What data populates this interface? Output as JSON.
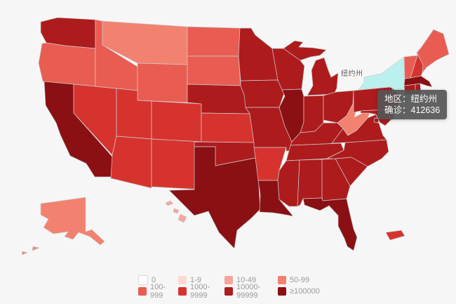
{
  "canvas": {
    "background": "#f6f6f7"
  },
  "map_label": {
    "text": "纽约州"
  },
  "tooltip": {
    "lines": [
      "地区：纽约州",
      "确诊：412636"
    ]
  },
  "hover": {
    "state": "NY",
    "fill": "#baf0ee"
  },
  "chart_data": {
    "type": "choropleth",
    "region": "United States",
    "metric_label": "确诊",
    "highlighted_state": {
      "name": "纽约州",
      "confirmed": 412636
    },
    "legend_position": "bottom",
    "buckets": [
      {
        "label": "0",
        "color": "#ffffff"
      },
      {
        "label": "1-9",
        "color": "#fbd9d2"
      },
      {
        "label": "10-49",
        "color": "#f8a49a"
      },
      {
        "label": "50-99",
        "color": "#f3816f"
      },
      {
        "label": "100-999",
        "color": "#e95c52"
      },
      {
        "label": "1000-9999",
        "color": "#d6332e"
      },
      {
        "label": "10000-99999",
        "color": "#ae1b1d"
      },
      {
        "label": "≥100000",
        "color": "#8a1013"
      }
    ],
    "states": [
      {
        "id": "WA",
        "bucket": "10000-99999"
      },
      {
        "id": "OR",
        "bucket": "100-999"
      },
      {
        "id": "CA",
        "bucket": "≥100000"
      },
      {
        "id": "NV",
        "bucket": "1000-9999"
      },
      {
        "id": "ID",
        "bucket": "100-999"
      },
      {
        "id": "MT",
        "bucket": "50-99"
      },
      {
        "id": "WY",
        "bucket": "100-999"
      },
      {
        "id": "UT",
        "bucket": "1000-9999"
      },
      {
        "id": "CO",
        "bucket": "1000-9999"
      },
      {
        "id": "AZ",
        "bucket": "1000-9999"
      },
      {
        "id": "NM",
        "bucket": "1000-9999"
      },
      {
        "id": "ND",
        "bucket": "100-999"
      },
      {
        "id": "SD",
        "bucket": "100-999"
      },
      {
        "id": "NE",
        "bucket": "10000-99999"
      },
      {
        "id": "KS",
        "bucket": "1000-9999"
      },
      {
        "id": "OK",
        "bucket": "10000-99999"
      },
      {
        "id": "TX",
        "bucket": "≥100000"
      },
      {
        "id": "MN",
        "bucket": "10000-99999"
      },
      {
        "id": "IA",
        "bucket": "10000-99999"
      },
      {
        "id": "MO",
        "bucket": "10000-99999"
      },
      {
        "id": "AR",
        "bucket": "1000-9999"
      },
      {
        "id": "LA",
        "bucket": "≥100000"
      },
      {
        "id": "WI",
        "bucket": "10000-99999"
      },
      {
        "id": "MI",
        "bucket": "10000-99999"
      },
      {
        "id": "IL",
        "bucket": "≥100000"
      },
      {
        "id": "IN",
        "bucket": "10000-99999"
      },
      {
        "id": "OH",
        "bucket": "10000-99999"
      },
      {
        "id": "KY",
        "bucket": "10000-99999"
      },
      {
        "id": "TN",
        "bucket": "10000-99999"
      },
      {
        "id": "MS",
        "bucket": "10000-99999"
      },
      {
        "id": "AL",
        "bucket": "10000-99999"
      },
      {
        "id": "GA",
        "bucket": "10000-99999"
      },
      {
        "id": "FL",
        "bucket": "≥100000"
      },
      {
        "id": "SC",
        "bucket": "10000-99999"
      },
      {
        "id": "NC",
        "bucket": "10000-99999"
      },
      {
        "id": "VA",
        "bucket": "10000-99999"
      },
      {
        "id": "WV",
        "bucket": "50-99"
      },
      {
        "id": "PA",
        "bucket": "10000-99999"
      },
      {
        "id": "NY",
        "bucket": "≥100000"
      },
      {
        "id": "NJ",
        "bucket": "≥100000"
      },
      {
        "id": "DE",
        "bucket": "10000-99999"
      },
      {
        "id": "MD",
        "bucket": "10000-99999"
      },
      {
        "id": "DC",
        "bucket": "10000-99999"
      },
      {
        "id": "CT",
        "bucket": "10000-99999"
      },
      {
        "id": "RI",
        "bucket": "10000-99999"
      },
      {
        "id": "MA",
        "bucket": "≥100000"
      },
      {
        "id": "VT",
        "bucket": "100-999"
      },
      {
        "id": "NH",
        "bucket": "1000-9999"
      },
      {
        "id": "ME",
        "bucket": "100-999"
      },
      {
        "id": "AK",
        "bucket": "50-99"
      },
      {
        "id": "HI",
        "bucket": "10-49"
      },
      {
        "id": "PR",
        "bucket": "1000-9999"
      }
    ]
  }
}
